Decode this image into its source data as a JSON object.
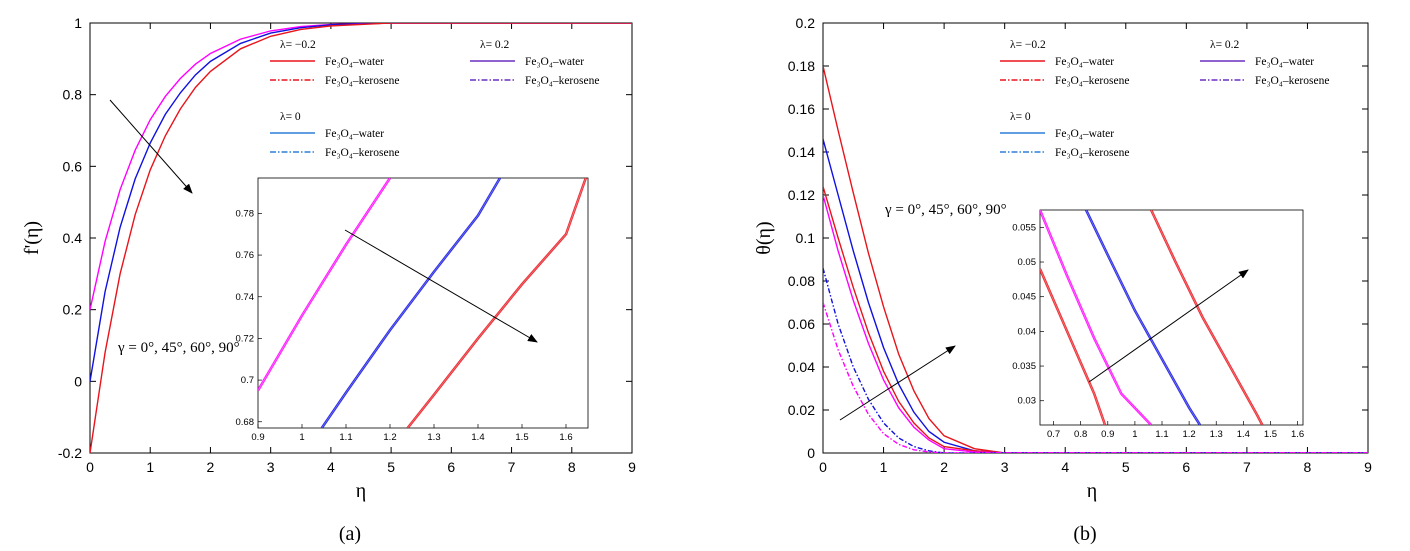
{
  "chart_data": [
    {
      "panel_label": "(a)",
      "type": "line",
      "xlabel": "η",
      "ylabel": "f'(η)",
      "xlim": [
        0,
        9
      ],
      "ylim": [
        -0.2,
        1
      ],
      "xticks": [
        "0",
        "1",
        "2",
        "3",
        "4",
        "5",
        "6",
        "7",
        "8",
        "9"
      ],
      "yticks": [
        "-0.2",
        "0",
        "0.2",
        "0.4",
        "0.6",
        "0.8",
        "1"
      ],
      "annotation": "γ = 0°, 45°, 60°, 90°",
      "legend": {
        "groups": [
          {
            "title": "λ= −0.2",
            "entries": [
              {
                "label": "Fe₃O₄–water",
                "color": "#e8141b",
                "style": "solid"
              },
              {
                "label": "Fe₃O₄–kerosene",
                "color": "#e8141b",
                "style": "dashdot"
              }
            ]
          },
          {
            "title": "λ= 0.2",
            "entries": [
              {
                "label": "Fe₃O₄–water",
                "color": "#6a2fbf",
                "style": "solid"
              },
              {
                "label": "Fe₃O₄–kerosene",
                "color": "#6a2fbf",
                "style": "dashdot"
              }
            ]
          },
          {
            "title": "λ= 0",
            "entries": [
              {
                "label": "Fe₃O₄–water",
                "color": "#2f7fd8",
                "style": "solid"
              },
              {
                "label": "Fe₃O₄–kerosene",
                "color": "#2f7fd8",
                "style": "dashdot"
              }
            ]
          }
        ]
      },
      "series": [
        {
          "color": "#ff00ff",
          "x": [
            0,
            0.25,
            0.5,
            0.75,
            1,
            1.25,
            1.5,
            1.75,
            2,
            2.5,
            3,
            3.5,
            4,
            5,
            6,
            7,
            8,
            9
          ],
          "y": [
            0.2,
            0.39,
            0.535,
            0.645,
            0.73,
            0.795,
            0.845,
            0.885,
            0.915,
            0.955,
            0.978,
            0.99,
            0.996,
            1,
            1,
            1,
            1,
            1
          ]
        },
        {
          "color": "#1010e0",
          "x": [
            0,
            0.25,
            0.5,
            0.75,
            1,
            1.25,
            1.5,
            1.75,
            2,
            2.5,
            3,
            3.5,
            4,
            5,
            6,
            7,
            8,
            9
          ],
          "y": [
            0,
            0.25,
            0.43,
            0.565,
            0.665,
            0.745,
            0.805,
            0.855,
            0.893,
            0.943,
            0.972,
            0.987,
            0.995,
            1,
            1,
            1,
            1,
            1
          ]
        },
        {
          "color": "#e8141b",
          "x": [
            0,
            0.25,
            0.5,
            0.75,
            1,
            1.25,
            1.5,
            1.75,
            2,
            2.5,
            3,
            3.5,
            4,
            5,
            6,
            7,
            8,
            9
          ],
          "y": [
            -0.2,
            0.08,
            0.3,
            0.465,
            0.59,
            0.685,
            0.76,
            0.82,
            0.865,
            0.928,
            0.963,
            0.982,
            0.992,
            1,
            1,
            1,
            1,
            1
          ]
        }
      ],
      "inset": {
        "xlim": [
          0.9,
          1.65
        ],
        "ylim": [
          0.677,
          0.797
        ],
        "xticks": [
          "0.9",
          "1",
          "1.1",
          "1.2",
          "1.3",
          "1.4",
          "1.5",
          "1.6"
        ],
        "yticks": [
          "0.68",
          "0.7",
          "0.72",
          "0.74",
          "0.76",
          "0.78"
        ],
        "series": [
          {
            "color": "#ff00ff",
            "x": [
              0.9,
              1.0,
              1.1,
              1.2
            ],
            "y": [
              0.695,
              0.731,
              0.765,
              0.797
            ]
          },
          {
            "color": "#1010e0",
            "x": [
              1.045,
              1.1,
              1.2,
              1.3,
              1.4,
              1.45
            ],
            "y": [
              0.677,
              0.694,
              0.724,
              0.752,
              0.779,
              0.797
            ]
          },
          {
            "color": "#e8141b",
            "x": [
              1.24,
              1.3,
              1.4,
              1.5,
              1.6,
              1.645
            ],
            "y": [
              0.677,
              0.693,
              0.72,
              0.746,
              0.77,
              0.797
            ]
          }
        ]
      }
    },
    {
      "panel_label": "(b)",
      "type": "line",
      "xlabel": "η",
      "ylabel": "θ(η)",
      "xlim": [
        0,
        9
      ],
      "ylim": [
        0,
        0.2
      ],
      "xticks": [
        "0",
        "1",
        "2",
        "3",
        "4",
        "5",
        "6",
        "7",
        "8",
        "9"
      ],
      "yticks": [
        "0",
        "0.02",
        "0.04",
        "0.06",
        "0.08",
        "0.1",
        "0.12",
        "0.14",
        "0.16",
        "0.18",
        "0.2"
      ],
      "annotation": "γ = 0°, 45°, 60°, 90°",
      "legend": {
        "groups": [
          {
            "title": "λ= −0.2",
            "entries": [
              {
                "label": "Fe₃O₄–water",
                "color": "#e8141b",
                "style": "solid"
              },
              {
                "label": "Fe₃O₄–kerosene",
                "color": "#e8141b",
                "style": "dashdot"
              }
            ]
          },
          {
            "title": "λ= 0.2",
            "entries": [
              {
                "label": "Fe₃O₄–water",
                "color": "#6a2fbf",
                "style": "solid"
              },
              {
                "label": "Fe₃O₄–kerosene",
                "color": "#6a2fbf",
                "style": "dashdot"
              }
            ]
          },
          {
            "title": "λ= 0",
            "entries": [
              {
                "label": "Fe₃O₄–water",
                "color": "#2f7fd8",
                "style": "solid"
              },
              {
                "label": "Fe₃O₄–kerosene",
                "color": "#2f7fd8",
                "style": "dashdot"
              }
            ]
          }
        ]
      },
      "series": [
        {
          "color": "#e8141b",
          "style": "solid",
          "x": [
            0,
            0.25,
            0.5,
            0.75,
            1,
            1.25,
            1.5,
            1.75,
            2,
            2.5,
            3,
            4,
            9
          ],
          "y": [
            0.18,
            0.15,
            0.121,
            0.093,
            0.068,
            0.046,
            0.029,
            0.016,
            0.008,
            0.002,
            0,
            0,
            0
          ]
        },
        {
          "color": "#1010e0",
          "style": "solid",
          "x": [
            0,
            0.25,
            0.5,
            0.75,
            1,
            1.25,
            1.5,
            1.75,
            2,
            2.5,
            3,
            4,
            9
          ],
          "y": [
            0.146,
            0.12,
            0.094,
            0.07,
            0.049,
            0.032,
            0.019,
            0.01,
            0.005,
            0.001,
            0,
            0,
            0
          ]
        },
        {
          "color": "#e8141b",
          "style": "solid",
          "x": [
            0,
            0.25,
            0.5,
            0.75,
            1,
            1.25,
            1.5,
            1.75,
            2,
            2.5,
            3,
            4,
            9
          ],
          "y": [
            0.124,
            0.1,
            0.077,
            0.056,
            0.038,
            0.024,
            0.014,
            0.007,
            0.003,
            0.001,
            0,
            0,
            0
          ]
        },
        {
          "color": "#ff00ff",
          "style": "solid",
          "x": [
            0,
            0.25,
            0.5,
            0.75,
            1,
            1.25,
            1.5,
            1.75,
            2,
            2.5,
            3,
            4,
            9
          ],
          "y": [
            0.12,
            0.094,
            0.071,
            0.051,
            0.034,
            0.021,
            0.012,
            0.006,
            0.002,
            0.0005,
            0,
            0,
            0
          ]
        },
        {
          "color": "#1010e0",
          "style": "dashdot",
          "x": [
            0,
            0.25,
            0.5,
            0.75,
            1,
            1.25,
            1.5,
            1.75,
            2,
            2.5,
            3,
            4,
            9
          ],
          "y": [
            0.086,
            0.06,
            0.04,
            0.025,
            0.014,
            0.007,
            0.003,
            0.001,
            0,
            0,
            0,
            0,
            0
          ]
        },
        {
          "color": "#ff00ff",
          "style": "dashdot",
          "x": [
            0,
            0.25,
            0.5,
            0.75,
            1,
            1.25,
            1.5,
            1.75,
            2,
            2.5,
            3,
            4,
            9
          ],
          "y": [
            0.07,
            0.048,
            0.031,
            0.018,
            0.009,
            0.004,
            0.0015,
            0.0005,
            0,
            0,
            0,
            0,
            0
          ]
        }
      ],
      "inset": {
        "xlim": [
          0.65,
          1.62
        ],
        "ylim": [
          0.0265,
          0.0575
        ],
        "xticks": [
          "0.7",
          "0.8",
          "0.9",
          "1",
          "1.1",
          "1.2",
          "1.3",
          "1.4",
          "1.5",
          "1.6"
        ],
        "yticks": [
          "0.03",
          "0.035",
          "0.04",
          "0.045",
          "0.05",
          "0.055"
        ],
        "series": [
          {
            "color": "#e8141b",
            "x": [
              0.65,
              0.75,
              0.85,
              0.89
            ],
            "y": [
              0.049,
              0.04,
              0.031,
              0.0265
            ]
          },
          {
            "color": "#ff00ff",
            "x": [
              0.65,
              0.75,
              0.85,
              0.95,
              1.06
            ],
            "y": [
              0.0575,
              0.048,
              0.039,
              0.031,
              0.0265
            ]
          },
          {
            "color": "#1010e0",
            "x": [
              0.82,
              0.9,
              1.0,
              1.1,
              1.2,
              1.24
            ],
            "y": [
              0.0575,
              0.051,
              0.043,
              0.036,
              0.029,
              0.0265
            ]
          },
          {
            "color": "#e8141b",
            "x": [
              1.06,
              1.15,
              1.25,
              1.35,
              1.45,
              1.47
            ],
            "y": [
              0.0575,
              0.05,
              0.042,
              0.035,
              0.028,
              0.0265
            ]
          }
        ]
      }
    }
  ]
}
